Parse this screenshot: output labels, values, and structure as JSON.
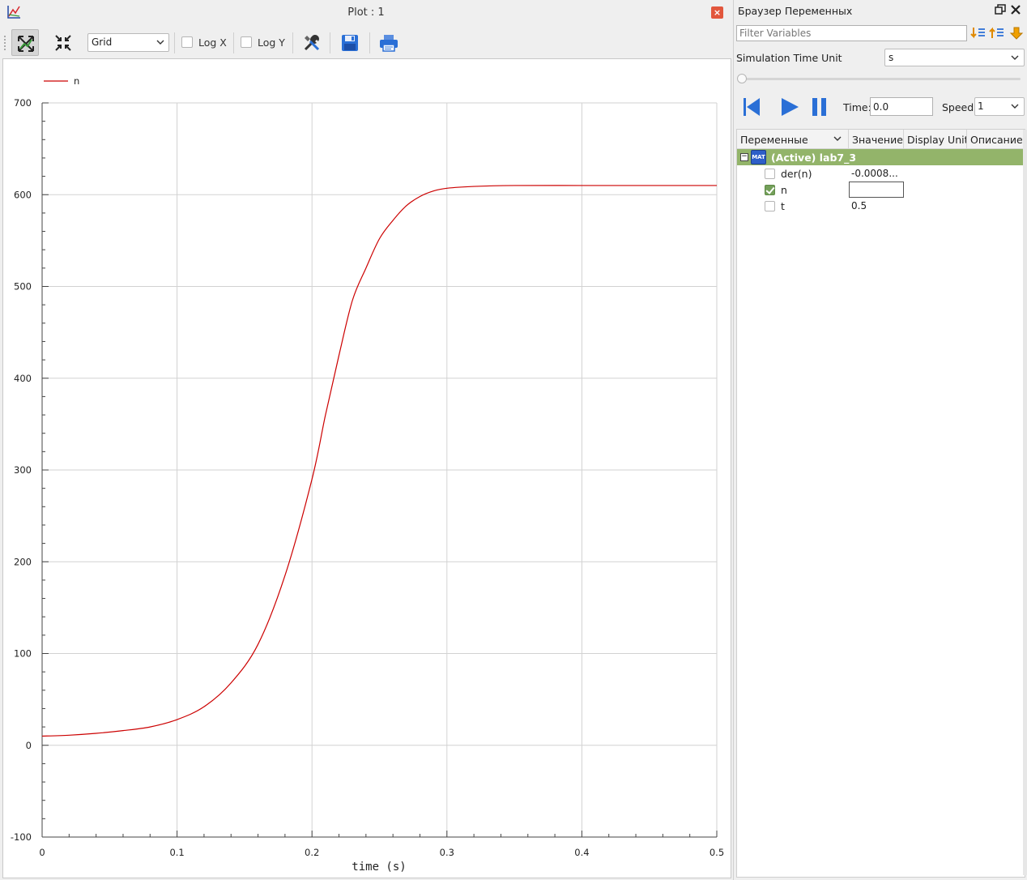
{
  "plot_window": {
    "title": "Plot : 1",
    "close_label": "×",
    "toolbar": {
      "grid_select": "Grid",
      "log_x_label": "Log X",
      "log_y_label": "Log Y"
    }
  },
  "chart_data": {
    "type": "line",
    "xlabel": "time (s)",
    "ylabel": "",
    "xlim": [
      0,
      0.5
    ],
    "ylim": [
      -100,
      700
    ],
    "x_ticks": [
      0,
      0.1,
      0.2,
      0.3,
      0.4,
      0.5
    ],
    "x_tick_labels": [
      "0",
      "0.1",
      "0.2",
      "0.3",
      "0.4",
      "0.5"
    ],
    "y_ticks": [
      -100,
      0,
      100,
      200,
      300,
      400,
      500,
      600,
      700
    ],
    "y_tick_labels": [
      "-100",
      "0",
      "100",
      "200",
      "300",
      "400",
      "500",
      "600",
      "700"
    ],
    "grid": true,
    "legend_position": "top-left",
    "colors": {
      "n": "#cc0000"
    },
    "series": [
      {
        "name": "n",
        "x": [
          0,
          0.02,
          0.04,
          0.06,
          0.08,
          0.1,
          0.12,
          0.14,
          0.16,
          0.18,
          0.2,
          0.21,
          0.22,
          0.23,
          0.24,
          0.25,
          0.26,
          0.27,
          0.28,
          0.29,
          0.3,
          0.32,
          0.35,
          0.4,
          0.45,
          0.5
        ],
        "y": [
          10,
          11,
          13,
          16,
          20,
          28,
          42,
          68,
          110,
          185,
          290,
          360,
          425,
          485,
          520,
          552,
          572,
          588,
          598,
          604,
          607,
          609,
          610,
          610,
          610,
          610
        ]
      }
    ]
  },
  "variables_browser": {
    "title": "Браузер Переменных",
    "filter_placeholder": "Filter Variables",
    "sim_time_unit_label": "Simulation Time Unit",
    "sim_time_unit_value": "s",
    "time_label": "Time:",
    "time_value": "0.0",
    "speed_label": "Speed:",
    "speed_value": "1",
    "columns": [
      "Переменные",
      "Значение",
      "Display Unit",
      "Описание"
    ],
    "root": {
      "icon_text": "MAT",
      "expander": "−",
      "label": "(Active) lab7_3"
    },
    "variables": [
      {
        "name": "der(n)",
        "value": "-0.0008...",
        "checked": false
      },
      {
        "name": "n",
        "value": "",
        "checked": true
      },
      {
        "name": "t",
        "value": "0.5",
        "checked": false
      }
    ]
  }
}
